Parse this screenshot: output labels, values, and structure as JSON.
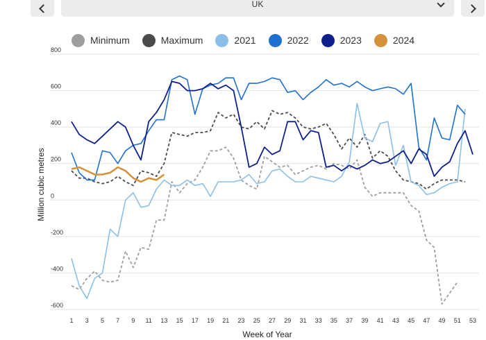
{
  "header": {
    "region": "UK"
  },
  "colors": {
    "Minimum": "#9e9e9e",
    "Maximum": "#4a4a4a",
    "2021": "#8bbfe8",
    "2022": "#1f6fd1",
    "2023": "#0d1f8c",
    "2024": "#d4923a"
  },
  "chart_data": {
    "type": "line",
    "xlabel": "Week of Year",
    "ylabel": "Million cubic metres",
    "xlim": [
      1,
      53
    ],
    "ylim": [
      -600,
      800
    ],
    "x_ticks": [
      1,
      3,
      5,
      7,
      9,
      11,
      13,
      15,
      17,
      19,
      21,
      23,
      25,
      27,
      29,
      31,
      33,
      35,
      37,
      39,
      41,
      43,
      45,
      47,
      49,
      51,
      53
    ],
    "y_ticks": [
      -600,
      -400,
      -200,
      0,
      200,
      400,
      600,
      800
    ],
    "grid": "horizontal",
    "legend_position": "top",
    "series": [
      {
        "name": "Minimum",
        "dash": true,
        "values": [
          -470,
          -490,
          -430,
          -390,
          -440,
          -450,
          -440,
          -280,
          -370,
          -260,
          -270,
          -110,
          -110,
          100,
          40,
          90,
          110,
          180,
          270,
          270,
          290,
          230,
          110,
          80,
          60,
          240,
          210,
          180,
          190,
          140,
          160,
          180,
          190,
          170,
          200,
          190,
          170,
          220,
          70,
          20,
          40,
          40,
          40,
          40,
          -30,
          -60,
          -220,
          -260,
          -570,
          -510,
          -450
        ]
      },
      {
        "name": "Maximum",
        "dash": true,
        "values": [
          160,
          120,
          120,
          100,
          90,
          100,
          130,
          100,
          80,
          160,
          150,
          130,
          200,
          370,
          360,
          350,
          370,
          370,
          380,
          480,
          450,
          470,
          400,
          390,
          430,
          390,
          490,
          470,
          480,
          450,
          400,
          390,
          400,
          420,
          360,
          280,
          340,
          290,
          360,
          230,
          270,
          240,
          160,
          110,
          100,
          90,
          60,
          90,
          110,
          110,
          110,
          100
        ]
      },
      {
        "name": "2021",
        "values": [
          -320,
          -470,
          -540,
          -430,
          -400,
          -160,
          -200,
          0,
          40,
          -40,
          -30,
          60,
          110,
          80,
          80,
          110,
          80,
          90,
          20,
          100,
          100,
          100,
          110,
          140,
          90,
          100,
          160,
          170,
          130,
          100,
          100,
          130,
          120,
          110,
          100,
          130,
          210,
          530,
          340,
          320,
          420,
          430,
          190,
          300,
          100,
          80,
          30,
          40,
          70,
          90,
          100,
          500
        ]
      },
      {
        "name": "2022",
        "values": [
          260,
          150,
          110,
          110,
          270,
          260,
          200,
          270,
          300,
          310,
          380,
          440,
          440,
          660,
          680,
          660,
          470,
          610,
          630,
          640,
          670,
          670,
          550,
          640,
          640,
          650,
          670,
          660,
          590,
          600,
          550,
          590,
          620,
          660,
          630,
          640,
          620,
          650,
          620,
          600,
          610,
          620,
          610,
          580,
          640,
          290,
          220,
          450,
          340,
          330,
          520,
          470
        ]
      },
      {
        "name": "2023",
        "values": [
          430,
          360,
          330,
          310,
          350,
          390,
          430,
          400,
          300,
          220,
          430,
          480,
          550,
          650,
          640,
          600,
          600,
          610,
          640,
          610,
          630,
          600,
          400,
          180,
          200,
          290,
          250,
          270,
          430,
          430,
          330,
          380,
          370,
          180,
          190,
          160,
          190,
          170,
          190,
          220,
          200,
          210,
          240,
          270,
          200,
          280,
          250,
          130,
          180,
          210,
          310,
          380,
          250
        ]
      },
      {
        "name": "2024",
        "values": [
          170,
          180,
          160,
          140,
          140,
          150,
          180,
          160,
          120,
          100,
          120,
          110,
          140
        ]
      }
    ]
  }
}
